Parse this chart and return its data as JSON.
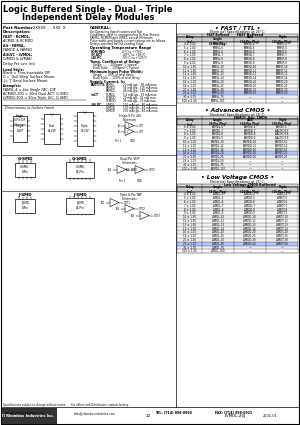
{
  "bg_color": "#ffffff",
  "title_line1": "Logic Buffered Single - Dual - Triple",
  "title_line2": "Independent Delay Modules",
  "fast_ttl_table": {
    "title": "FAST / TTL",
    "subheader": "Electrical Specifications at 25°C:",
    "col_header": [
      "Delay\n(ns)",
      "FAST Buffered\nSingle\n(8-Pin Pkg)",
      "Dual\n(14-Pin Pkg)",
      "Triple\n(16-Pin Pkg)"
    ],
    "rows": [
      [
        "4 ± 1.00",
        "FAMSL-4",
        "FAMSD-4",
        "FAMST-4"
      ],
      [
        "5 ± 1.00",
        "FAMSL-5",
        "FAMSD-5",
        "FAMST-5"
      ],
      [
        "6 ± 1.00",
        "FAMSL-6",
        "FAMSD-6",
        "FAMST-6"
      ],
      [
        "7 ± 1.00",
        "FAMSL-7",
        "FAMSD-7",
        "FAMST-7"
      ],
      [
        "8 ± 1.00",
        "FAMSL-8",
        "FAMSD-8",
        "FAMST-8"
      ],
      [
        "9 ± 1.00",
        "FAMSL-9",
        "FAMSD-9",
        "FAMST-9"
      ],
      [
        "10 ± 1.50",
        "FAMSL-10",
        "FAMSD-10",
        "FAMST-10"
      ],
      [
        "12 ± 1.50",
        "FAMSL-12",
        "FAMSD-12",
        "FAMST-12"
      ],
      [
        "13 ± 1.50",
        "FAMSL-13",
        "FAMSD-13",
        "FAMST-13"
      ],
      [
        "14 ± 1.50",
        "FAMSL-14",
        "FAMSD-14",
        "FAMST-14"
      ],
      [
        "16 ± 1.00",
        "FAMSL-20",
        "FAMSD-20",
        "FAMST-20"
      ],
      [
        "18 ± 1.00",
        "FAMSL-25",
        "FAMSD-25",
        "FAMST-25"
      ],
      [
        "20 ± 1.50",
        "FAMSL-30",
        "FAMSD-30",
        "FAMST-30"
      ],
      [
        "25 ± 1.00",
        "FAMSL-50",
        "FAMSD-50",
        "FAMST-50"
      ],
      [
        "30 ± 1.75",
        "FAMSL-75",
        "—",
        "—"
      ],
      [
        "100 ± 1.00",
        "FAMSL-100",
        "—",
        "—"
      ]
    ],
    "highlight_row": 13
  },
  "adv_cmos_table": {
    "title": "Advanced CMOS",
    "subheader": "Electrical Specifications at 25°C:",
    "col_header2": "FAMLY/ Adv. CMOS",
    "col_header": [
      "Delay\n(ns)",
      "Single\n(8-Pin Pkg)",
      "Dual\n(14-Pin Pkg)",
      "Triple\n(16-Pin Pkg)"
    ],
    "rows": [
      [
        "5 ± 1.00",
        "ACMDL-5",
        "ACMDD-5",
        "ACMDT-5"
      ],
      [
        "7 ± 1.00",
        "ACMDL-7",
        "ACMDD-7",
        "A-ACMDT-7"
      ],
      [
        "8 ± 1.00",
        "ACMDL-8",
        "ACMDD-8",
        "A-ACMDT-8"
      ],
      [
        "9 ± 1.00",
        "ACMDL-9",
        "ACMDD-9",
        "A-ACMDT-9"
      ],
      [
        "10 ± 1.00",
        "ACMDL-10",
        "ACMDD-10",
        "ACMDT-10"
      ],
      [
        "12 ± 1.00",
        "ACMDL-12",
        "ACMDD-12",
        "ACMDT-12"
      ],
      [
        "14 ± 1.00",
        "ACMDL-16",
        "ACMDD-16",
        "ACMDT-16"
      ],
      [
        "16 ± 1.00",
        "ACMDL-20",
        "ACMDD-20",
        "ACMDT-20"
      ],
      [
        "20 ± 1.50",
        "ACMDL-25",
        "ACMDD-25",
        "ACMDT-25"
      ],
      [
        "25 ± 1.00",
        "ACMDL-50",
        "—",
        "—"
      ],
      [
        "30 ± 1.75",
        "ACMDL-75",
        "—",
        "—"
      ],
      [
        "100 ± 1.00",
        "ACMDL-100",
        "—",
        "—"
      ]
    ],
    "highlight_row": 7
  },
  "lv_cmos_table": {
    "title": "Low Voltage CMOS",
    "subheader": "Electrical Specifications at 25°C:",
    "col_header2": "Low Voltage CMOS Buffered",
    "col_header": [
      "Delay\n(ns)",
      "Single\n(8-Pin Pkg)",
      "Dual\n(14-Pin Pkg)",
      "Triple\n(16-Pin Pkg)"
    ],
    "rows": [
      [
        "4 ± 1.00",
        "LVMDL-4",
        "LVMDD-4",
        "LVMDT-4"
      ],
      [
        "5 ± 1.00",
        "LVMDL-5",
        "LVMDD-5",
        "LVMDT-5"
      ],
      [
        "6 ± 1.00",
        "LVMDL-6",
        "LVMDD-6",
        "LVMDT-6"
      ],
      [
        "7 ± 1.00",
        "LVMDL-7",
        "LVMDD-7",
        "LVMDT-7"
      ],
      [
        "8 ± 1.00",
        "LVMDL-8",
        "LVMDD-8",
        "LVMDT-8"
      ],
      [
        "9 ± 1.00",
        "LVMDL-9",
        "LVMDD-9",
        "LVMDT-9"
      ],
      [
        "10 ± 1.50",
        "LVMDL-10",
        "LVMDD-10",
        "LVMDT-10"
      ],
      [
        "12 ± 1.50",
        "LVMDL-12",
        "LVMDD-12",
        "LVMDT-12"
      ],
      [
        "13 ± 1.50",
        "LVMDL-13",
        "LVMDD-13",
        "LVMDT-13"
      ],
      [
        "14 ± 1.50",
        "LVMDL-14",
        "LVMDD-14",
        "LVMDT-14"
      ],
      [
        "16 ± 1.00",
        "LVMDL-20",
        "LVMDD-20",
        "LVMDT-20"
      ],
      [
        "18 ± 1.00",
        "LVMDL-25",
        "LVMDD-25",
        "LVMDT-25"
      ],
      [
        "20 ± 1.50",
        "LVMDL-30",
        "LVMDD-30",
        "LVMDT-30"
      ],
      [
        "25 ± 1.00",
        "LVMDL-50",
        "LVMDD-50",
        "LVMDT-50"
      ],
      [
        "30 ± 1.75",
        "LVMDL-75",
        "—",
        "—"
      ],
      [
        "100 ± 1.00",
        "LVMDL-100",
        "—",
        "—"
      ]
    ],
    "highlight_row": 13
  },
  "footer_web": "www.rhombusindustries.com",
  "footer_email": "sales@rhombusindustries.com",
  "footer_tel": "TEL: (714) 898-0960",
  "footer_fax": "FAX: (714) 896-0921",
  "footer_part": "LVMDL-20J",
  "footer_date": "2001-01",
  "footer_company": "Rhombus Industries Inc."
}
